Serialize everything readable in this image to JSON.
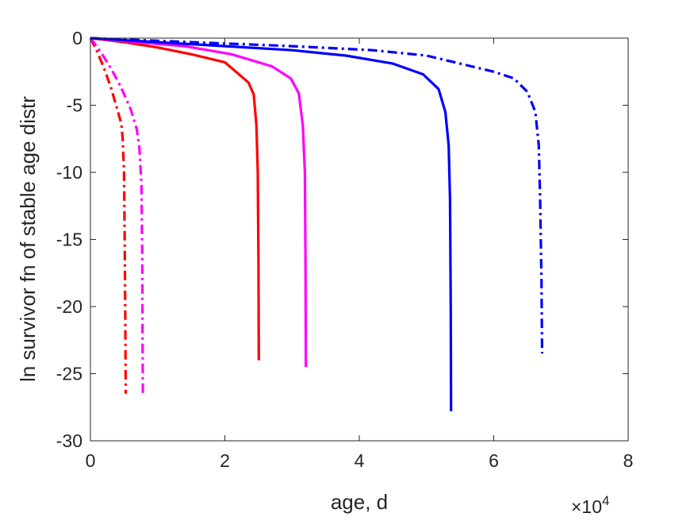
{
  "chart_data": {
    "type": "line",
    "xlabel": "age, d",
    "ylabel": "ln survivor fn of stable age distr",
    "x_exponent_label": {
      "base": "×10",
      "exp": "4"
    },
    "xlim": [
      0,
      80000
    ],
    "ylim": [
      -30,
      0
    ],
    "x_ticks": [
      0,
      20000,
      40000,
      60000,
      80000
    ],
    "x_tick_labels": [
      "0",
      "2",
      "4",
      "6",
      "8"
    ],
    "y_ticks": [
      0,
      -5,
      -10,
      -15,
      -20,
      -25,
      -30
    ],
    "y_tick_labels": [
      "0",
      "-5",
      "-10",
      "-15",
      "-20",
      "-25",
      "-30"
    ],
    "grid": false,
    "series": [
      {
        "color": "#ff0000",
        "dash": "dashdot",
        "x": [
          0,
          1000,
          2000,
          3000,
          4000,
          4600,
          4800,
          5000,
          5100,
          5200,
          5250
        ],
        "y": [
          0,
          -1.0,
          -2.2,
          -3.6,
          -5.3,
          -6.4,
          -7.5,
          -10,
          -15,
          -22,
          -26.5
        ]
      },
      {
        "color": "#ff00ff",
        "dash": "dashdot",
        "x": [
          0,
          1500,
          3000,
          4500,
          6000,
          6900,
          7300,
          7600,
          7700,
          7750,
          7800
        ],
        "y": [
          0,
          -1.0,
          -2.2,
          -3.6,
          -5.3,
          -6.8,
          -8.3,
          -11,
          -16,
          -22,
          -26.5
        ]
      },
      {
        "color": "#ff0000",
        "dash": "solid",
        "x": [
          0,
          5000,
          10000,
          15000,
          20000,
          23500,
          24300,
          24700,
          24900,
          25000,
          25050
        ],
        "y": [
          0,
          -0.3,
          -0.7,
          -1.2,
          -1.8,
          -3.3,
          -4.2,
          -6.5,
          -10,
          -17,
          -24
        ]
      },
      {
        "color": "#ff00ff",
        "dash": "solid",
        "x": [
          0,
          7000,
          14000,
          21000,
          27000,
          29800,
          31000,
          31600,
          31900,
          32000,
          32050
        ],
        "y": [
          0,
          -0.3,
          -0.6,
          -1.2,
          -2.1,
          -3.0,
          -4.1,
          -6.5,
          -10,
          -17,
          -24.5
        ]
      },
      {
        "color": "#0000ff",
        "dash": "solid",
        "x": [
          0,
          10000,
          20000,
          30000,
          38000,
          45000,
          49500,
          51800,
          52800,
          53300,
          53500,
          53600,
          53650
        ],
        "y": [
          0,
          -0.3,
          -0.6,
          -0.9,
          -1.3,
          -1.9,
          -2.7,
          -3.8,
          -5.5,
          -8,
          -12,
          -20,
          -27.8
        ]
      },
      {
        "color": "#0000ff",
        "dash": "dashdot",
        "x": [
          0,
          15000,
          30000,
          42000,
          50000,
          55000,
          60000,
          63000,
          65000,
          66200,
          66700,
          66900,
          67100,
          67200
        ],
        "y": [
          0,
          -0.3,
          -0.6,
          -0.9,
          -1.3,
          -1.9,
          -2.5,
          -3.0,
          -4.0,
          -5.5,
          -8,
          -12,
          -18,
          -23.5
        ]
      }
    ]
  }
}
